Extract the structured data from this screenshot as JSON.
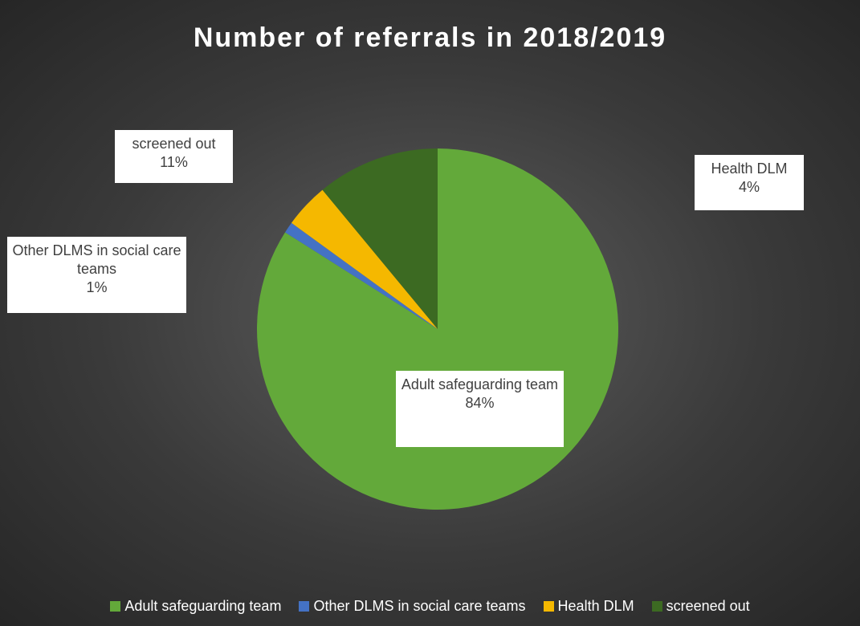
{
  "chart_data": {
    "type": "pie",
    "title": "Number of referrals in 2018/2019",
    "categories": [
      "Adult safeguarding team",
      "Other DLMS in social care teams",
      "Health DLM",
      "screened out"
    ],
    "values": [
      84,
      1,
      4,
      11
    ],
    "value_labels": [
      "84%",
      "1%",
      "4%",
      "11%"
    ],
    "colors": [
      "#63a93a",
      "#4472c4",
      "#f5b800",
      "#3c6a22"
    ],
    "legend": "bottom"
  }
}
